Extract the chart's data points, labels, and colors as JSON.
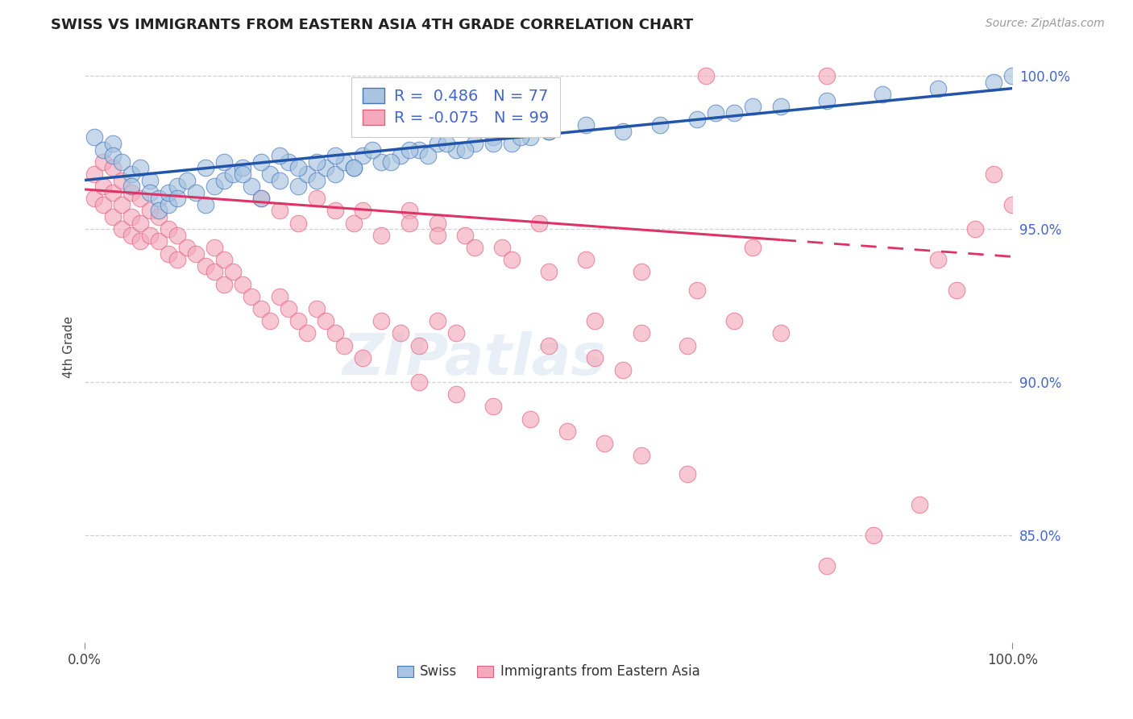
{
  "title": "SWISS VS IMMIGRANTS FROM EASTERN ASIA 4TH GRADE CORRELATION CHART",
  "source_text": "Source: ZipAtlas.com",
  "ylabel": "4th Grade",
  "xmin": 0.0,
  "xmax": 1.0,
  "ymin": 0.815,
  "ymax": 1.008,
  "ytick_pos": [
    0.85,
    0.9,
    0.95,
    1.0
  ],
  "ytick_labels": [
    "85.0%",
    "90.0%",
    "95.0%",
    "100.0%"
  ],
  "blue_R": 0.486,
  "blue_N": 77,
  "pink_R": -0.075,
  "pink_N": 99,
  "blue_fill": "#A8C4E0",
  "blue_edge": "#4477BB",
  "pink_fill": "#F4AABC",
  "pink_edge": "#E06080",
  "blue_line_color": "#2255AA",
  "pink_line_color": "#DD3366",
  "legend_blue_label": "Swiss",
  "legend_pink_label": "Immigrants from Eastern Asia",
  "watermark_text": "ZIPatlas",
  "grid_color": "#CCCCCC",
  "blue_x": [
    0.01,
    0.02,
    0.03,
    0.03,
    0.04,
    0.05,
    0.05,
    0.06,
    0.07,
    0.07,
    0.08,
    0.08,
    0.09,
    0.09,
    0.1,
    0.1,
    0.11,
    0.12,
    0.13,
    0.14,
    0.15,
    0.16,
    0.17,
    0.18,
    0.19,
    0.2,
    0.21,
    0.22,
    0.23,
    0.24,
    0.25,
    0.26,
    0.27,
    0.28,
    0.29,
    0.3,
    0.32,
    0.34,
    0.36,
    0.38,
    0.4,
    0.42,
    0.44,
    0.46,
    0.48,
    0.5,
    0.13,
    0.15,
    0.17,
    0.19,
    0.21,
    0.23,
    0.25,
    0.27,
    0.29,
    0.31,
    0.33,
    0.35,
    0.37,
    0.39,
    0.41,
    0.44,
    0.47,
    0.5,
    0.54,
    0.58,
    0.62,
    0.66,
    0.7,
    0.75,
    0.8,
    0.86,
    0.92,
    0.98,
    1.0,
    0.68,
    0.72
  ],
  "blue_y": [
    0.98,
    0.976,
    0.978,
    0.974,
    0.972,
    0.968,
    0.964,
    0.97,
    0.966,
    0.962,
    0.96,
    0.956,
    0.958,
    0.962,
    0.964,
    0.96,
    0.966,
    0.962,
    0.958,
    0.964,
    0.966,
    0.968,
    0.97,
    0.964,
    0.96,
    0.968,
    0.966,
    0.972,
    0.964,
    0.968,
    0.966,
    0.97,
    0.968,
    0.972,
    0.97,
    0.974,
    0.972,
    0.974,
    0.976,
    0.978,
    0.976,
    0.978,
    0.98,
    0.978,
    0.98,
    0.982,
    0.97,
    0.972,
    0.968,
    0.972,
    0.974,
    0.97,
    0.972,
    0.974,
    0.97,
    0.976,
    0.972,
    0.976,
    0.974,
    0.978,
    0.976,
    0.978,
    0.98,
    0.982,
    0.984,
    0.982,
    0.984,
    0.986,
    0.988,
    0.99,
    0.992,
    0.994,
    0.996,
    0.998,
    1.0,
    0.988,
    0.99
  ],
  "pink_x": [
    0.01,
    0.01,
    0.02,
    0.02,
    0.02,
    0.03,
    0.03,
    0.03,
    0.04,
    0.04,
    0.04,
    0.05,
    0.05,
    0.05,
    0.06,
    0.06,
    0.06,
    0.07,
    0.07,
    0.08,
    0.08,
    0.09,
    0.09,
    0.1,
    0.1,
    0.11,
    0.12,
    0.13,
    0.14,
    0.14,
    0.15,
    0.15,
    0.16,
    0.17,
    0.18,
    0.19,
    0.2,
    0.21,
    0.22,
    0.23,
    0.24,
    0.25,
    0.26,
    0.27,
    0.28,
    0.3,
    0.32,
    0.34,
    0.36,
    0.38,
    0.4,
    0.19,
    0.21,
    0.23,
    0.25,
    0.27,
    0.29,
    0.32,
    0.35,
    0.38,
    0.41,
    0.45,
    0.49,
    0.54,
    0.6,
    0.66,
    0.72,
    0.67,
    0.8,
    0.92,
    0.94,
    0.96,
    0.98,
    1.0,
    0.5,
    0.55,
    0.58,
    0.3,
    0.35,
    0.38,
    0.42,
    0.46,
    0.5,
    0.55,
    0.6,
    0.65,
    0.7,
    0.75,
    0.8,
    0.85,
    0.9,
    0.36,
    0.4,
    0.44,
    0.48,
    0.52,
    0.56,
    0.6,
    0.65
  ],
  "pink_y": [
    0.968,
    0.96,
    0.972,
    0.964,
    0.958,
    0.97,
    0.962,
    0.954,
    0.966,
    0.958,
    0.95,
    0.962,
    0.954,
    0.948,
    0.96,
    0.952,
    0.946,
    0.956,
    0.948,
    0.954,
    0.946,
    0.95,
    0.942,
    0.948,
    0.94,
    0.944,
    0.942,
    0.938,
    0.944,
    0.936,
    0.94,
    0.932,
    0.936,
    0.932,
    0.928,
    0.924,
    0.92,
    0.928,
    0.924,
    0.92,
    0.916,
    0.924,
    0.92,
    0.916,
    0.912,
    0.908,
    0.92,
    0.916,
    0.912,
    0.92,
    0.916,
    0.96,
    0.956,
    0.952,
    0.96,
    0.956,
    0.952,
    0.948,
    0.956,
    0.952,
    0.948,
    0.944,
    0.952,
    0.94,
    0.936,
    0.93,
    0.944,
    1.0,
    1.0,
    0.94,
    0.93,
    0.95,
    0.968,
    0.958,
    0.912,
    0.908,
    0.904,
    0.956,
    0.952,
    0.948,
    0.944,
    0.94,
    0.936,
    0.92,
    0.916,
    0.912,
    0.92,
    0.916,
    0.84,
    0.85,
    0.86,
    0.9,
    0.896,
    0.892,
    0.888,
    0.884,
    0.88,
    0.876,
    0.87
  ]
}
